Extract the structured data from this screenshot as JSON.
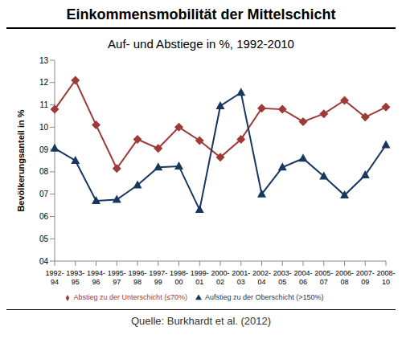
{
  "chart_data": {
    "type": "line",
    "title": "Einkommensmobilität der Mittelschicht",
    "subtitle": "Auf- und Abstiege in %, 1992-2010",
    "y_label": "Bevölkerungsanteil in %",
    "source": "Quelle: Burkhardt et al. (2012)",
    "categories": [
      "1992-94",
      "1993-95",
      "1994-96",
      "1995-97",
      "1996-98",
      "1997-99",
      "1998-00",
      "1999-01",
      "2000-02",
      "2001-03",
      "2002-04",
      "2003-05",
      "2004-06",
      "2005-07",
      "2006-08",
      "2007-09",
      "2008-10"
    ],
    "series": [
      {
        "name": "Abstieg zu der Unterschicht (≤70%)",
        "color": "#9e3a38",
        "marker": "diamond",
        "values": [
          10.8,
          12.1,
          10.1,
          8.15,
          9.45,
          9.05,
          10.0,
          9.4,
          8.65,
          9.45,
          10.85,
          10.8,
          10.25,
          10.6,
          11.2,
          10.45,
          10.9
        ]
      },
      {
        "name": "Aufstieg zu der Oberschicht (>150%)",
        "color": "#17375e",
        "marker": "triangle",
        "values": [
          9.05,
          8.5,
          6.7,
          6.75,
          7.4,
          8.2,
          8.25,
          6.3,
          10.95,
          11.55,
          7.0,
          8.2,
          8.6,
          7.8,
          6.95,
          7.85,
          9.2
        ]
      }
    ],
    "ylim": [
      4,
      13
    ],
    "yticks": [
      {
        "value": 4,
        "label": "04"
      },
      {
        "value": 5,
        "label": "05"
      },
      {
        "value": 6,
        "label": "06"
      },
      {
        "value": 7,
        "label": "07"
      },
      {
        "value": 8,
        "label": "08"
      },
      {
        "value": 9,
        "label": "09"
      },
      10,
      11,
      12,
      13
    ],
    "grid": false,
    "legend": "bottom"
  }
}
